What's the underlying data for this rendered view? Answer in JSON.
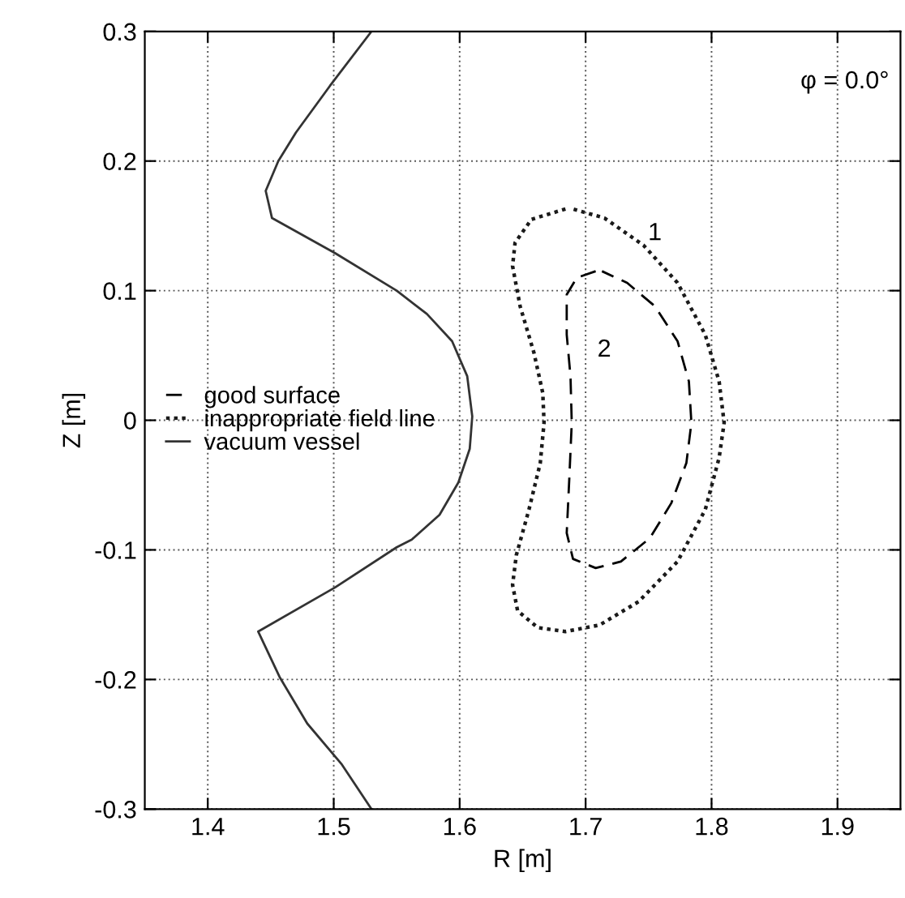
{
  "chart_data": {
    "type": "line",
    "xlabel": "R [m]",
    "ylabel": "Z [m]",
    "xlim": [
      1.35,
      1.95
    ],
    "xticks": [
      1.4,
      1.5,
      1.6,
      1.7,
      1.8,
      1.9
    ],
    "ylim": [
      -0.3,
      0.3
    ],
    "yticks": [
      -0.3,
      -0.2,
      -0.1,
      0,
      0.1,
      0.2,
      0.3
    ],
    "grid": true,
    "legend": "left",
    "series": [
      {
        "name": "good surface",
        "color": "#000000",
        "line_style": "dashed",
        "x": [
          1.708,
          1.693,
          1.685,
          1.685,
          1.688,
          1.689,
          1.687,
          1.685,
          1.69,
          1.708,
          1.728,
          1.751,
          1.768,
          1.78,
          1.784,
          1.782,
          1.773,
          1.755,
          1.733,
          1.713
        ],
        "values": [
          0.115,
          0.11,
          0.097,
          0.066,
          0.034,
          -0.002,
          -0.046,
          -0.087,
          -0.107,
          -0.114,
          -0.109,
          -0.091,
          -0.064,
          -0.033,
          -0.002,
          0.03,
          0.061,
          0.088,
          0.106,
          0.115
        ]
      },
      {
        "name": "inappropriate field line",
        "color": "#1a1a1a",
        "line_style": "dotted",
        "x": [
          1.684,
          1.657,
          1.644,
          1.642,
          1.648,
          1.659,
          1.666,
          1.667,
          1.664,
          1.655,
          1.645,
          1.642,
          1.646,
          1.662,
          1.684,
          1.711,
          1.742,
          1.773,
          1.795,
          1.806,
          1.81,
          1.806,
          1.795,
          1.773,
          1.746,
          1.715,
          1.69
        ],
        "values": [
          0.163,
          0.155,
          0.137,
          0.119,
          0.088,
          0.052,
          0.021,
          -0.002,
          -0.033,
          -0.069,
          -0.104,
          -0.127,
          -0.147,
          -0.16,
          -0.163,
          -0.158,
          -0.14,
          -0.109,
          -0.069,
          -0.029,
          -0.002,
          0.03,
          0.066,
          0.106,
          0.135,
          0.156,
          0.163
        ]
      },
      {
        "name": "vacuum vessel",
        "color": "#333333",
        "line_style": "solid",
        "x": [
          1.53,
          1.497,
          1.47,
          1.456,
          1.446,
          1.451,
          1.501,
          1.55,
          1.574,
          1.594,
          1.606,
          1.61,
          1.608,
          1.599,
          1.584,
          1.562,
          1.55,
          1.501,
          1.44,
          1.457,
          1.479,
          1.506,
          1.53
        ],
        "values": [
          0.3,
          0.258,
          0.222,
          0.2,
          0.177,
          0.156,
          0.129,
          0.1,
          0.082,
          0.061,
          0.034,
          0.003,
          -0.022,
          -0.048,
          -0.073,
          -0.092,
          -0.098,
          -0.129,
          -0.163,
          -0.198,
          -0.234,
          -0.265,
          -0.3
        ]
      }
    ],
    "annotations": [
      "1",
      "2",
      "φ = 0.0°"
    ]
  }
}
